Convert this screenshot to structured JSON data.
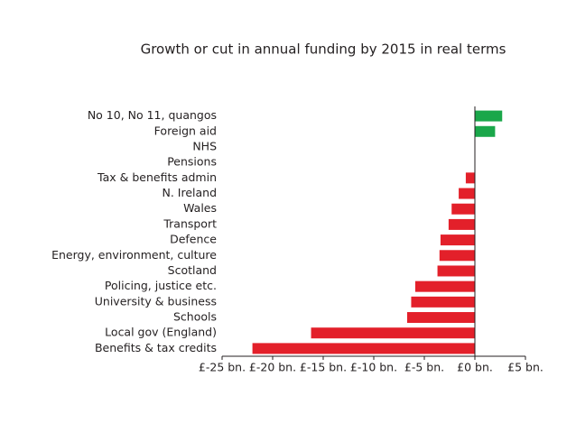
{
  "chart_data": {
    "type": "hbar",
    "title": "Growth or cut in annual funding by 2015 in real terms",
    "categories": [
      "No 10, No 11, quangos",
      "Foreign aid",
      "NHS",
      "Pensions",
      "Tax & benefits admin",
      "N. Ireland",
      "Wales",
      "Transport",
      "Defence",
      "Energy, environment, culture",
      "Scotland",
      "Policing, justice etc.",
      "University & business",
      "Schools",
      "Local gov (England)",
      "Benefits & tax credits"
    ],
    "values": [
      2.7,
      2.0,
      0,
      0,
      -0.9,
      -1.6,
      -2.3,
      -2.6,
      -3.4,
      -3.5,
      -3.7,
      -5.9,
      -6.3,
      -6.7,
      -16.2,
      -22.0
    ],
    "positive_color": "#1aa74a",
    "negative_color": "#e3202a",
    "xlim": [
      -25,
      5
    ],
    "xticks": [
      {
        "value": -25,
        "label": "£-25 bn."
      },
      {
        "value": -20,
        "label": "£-20 bn."
      },
      {
        "value": -15,
        "label": "£-15 bn."
      },
      {
        "value": -10,
        "label": "£-10 bn."
      },
      {
        "value": -5,
        "label": "£-5 bn."
      },
      {
        "value": 0,
        "label": "£0 bn."
      },
      {
        "value": 5,
        "label": "£5 bn."
      }
    ]
  }
}
